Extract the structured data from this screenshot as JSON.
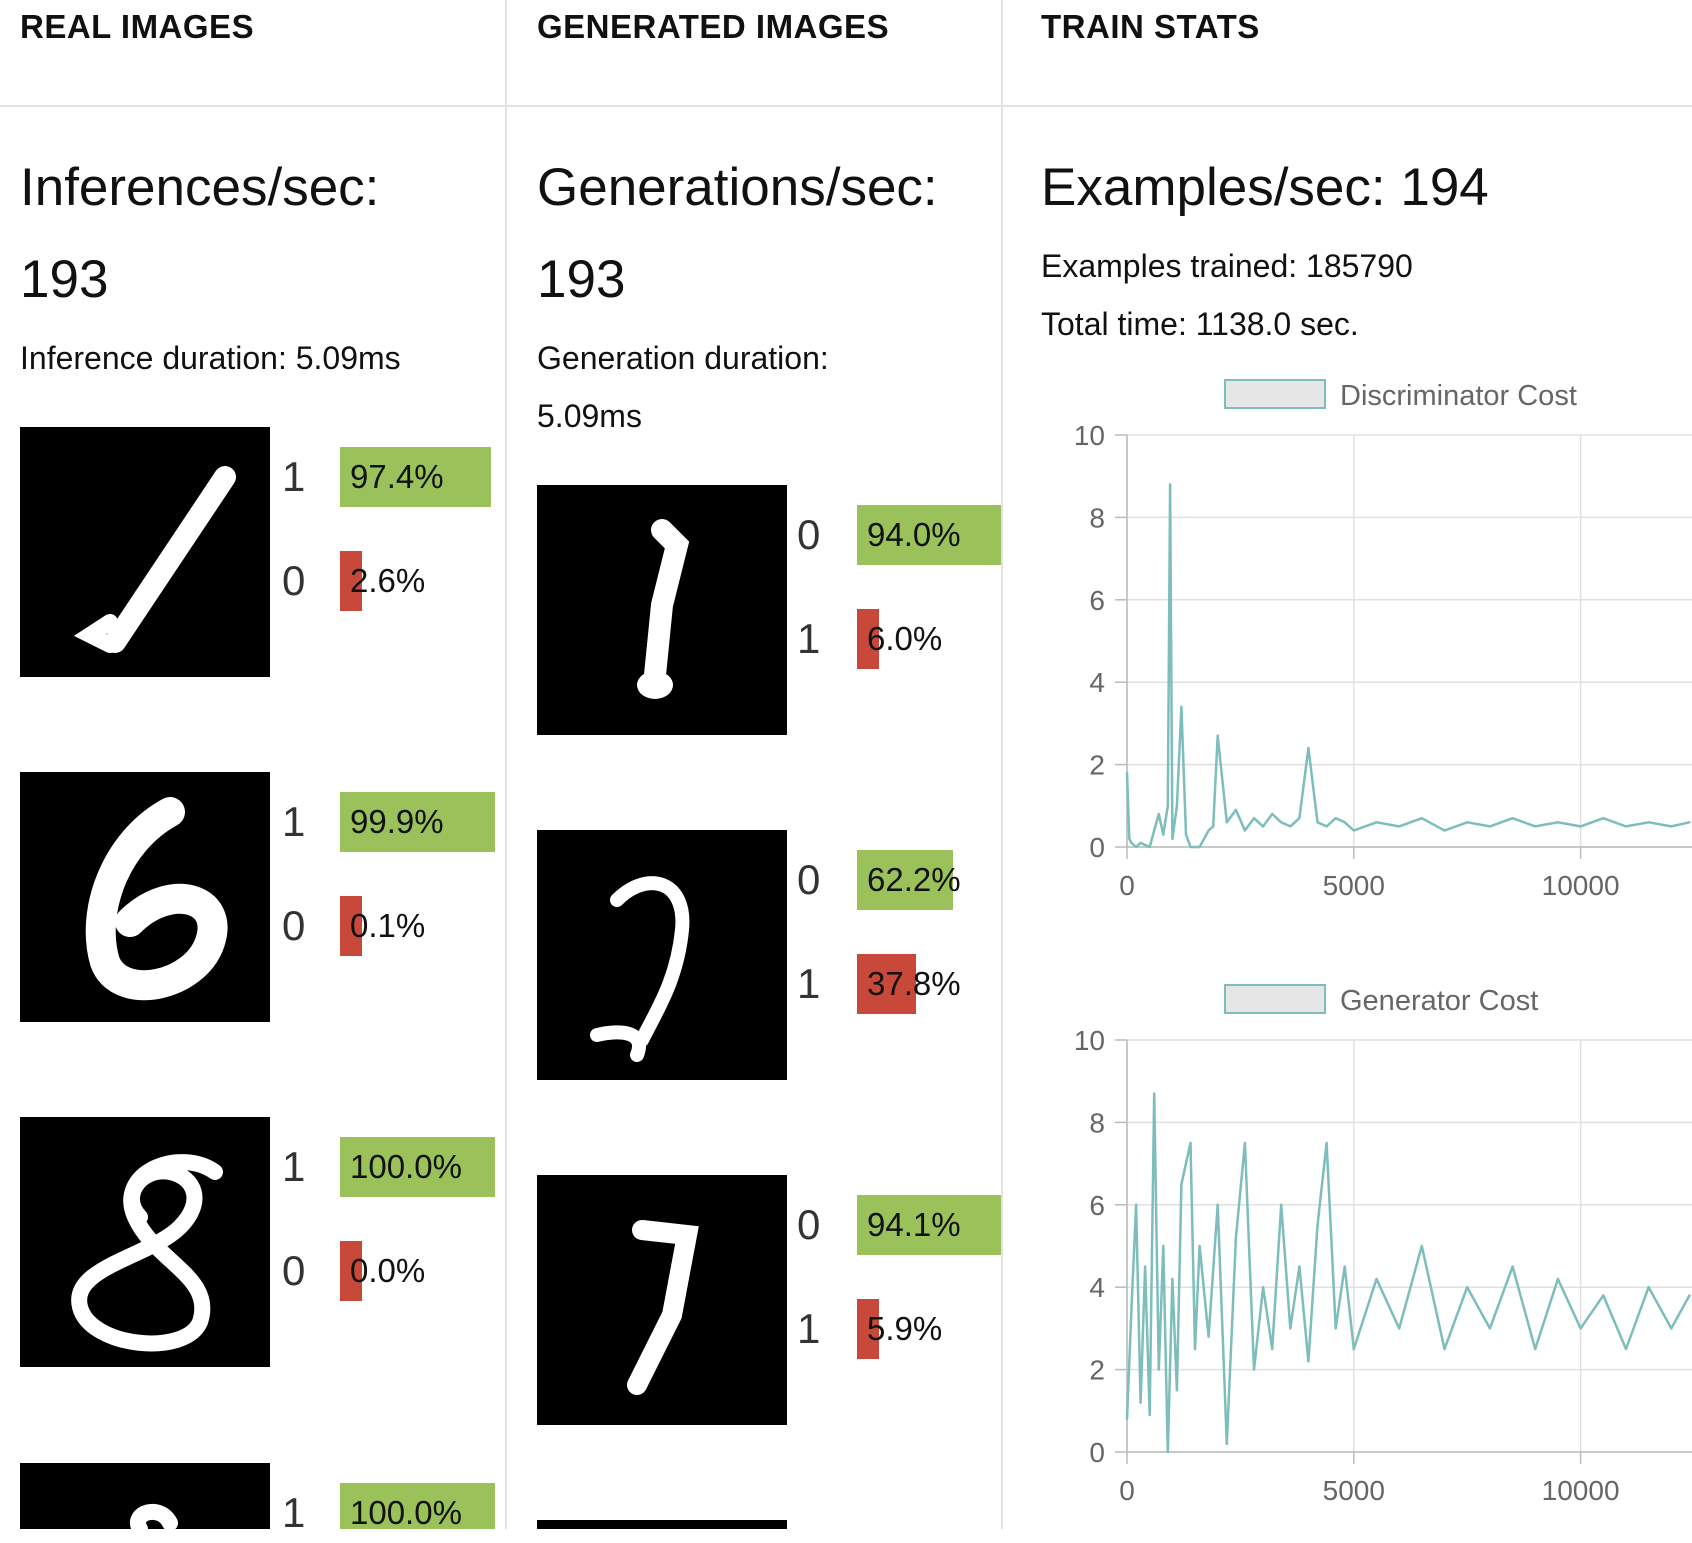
{
  "columns": {
    "real": {
      "header": "REAL IMAGES",
      "rate_label": "Inferences/sec:",
      "rate_value": "193",
      "duration_label": "Inference duration: 5.09ms",
      "samples": [
        {
          "digit_icon": "digit-1-image",
          "preds": [
            {
              "label": "1",
              "pct": 97.4,
              "text": "97.4%",
              "color": "#9bc25a"
            },
            {
              "label": "0",
              "pct": 2.6,
              "text": "2.6%",
              "color": "#c8483a"
            }
          ]
        },
        {
          "digit_icon": "digit-6-image",
          "preds": [
            {
              "label": "1",
              "pct": 99.9,
              "text": "99.9%",
              "color": "#9bc25a"
            },
            {
              "label": "0",
              "pct": 0.1,
              "text": "0.1%",
              "color": "#c8483a"
            }
          ]
        },
        {
          "digit_icon": "digit-8-image",
          "preds": [
            {
              "label": "1",
              "pct": 100.0,
              "text": "100.0%",
              "color": "#9bc25a"
            },
            {
              "label": "0",
              "pct": 0.0,
              "text": "0.0%",
              "color": "#c8483a"
            }
          ]
        },
        {
          "digit_icon": "digit-partial-image",
          "preds": [
            {
              "label": "1",
              "pct": 100.0,
              "text": "100.0%",
              "color": "#9bc25a"
            }
          ]
        }
      ]
    },
    "generated": {
      "header": "GENERATED IMAGES",
      "rate_label": "Generations/sec:",
      "rate_value": "193",
      "duration_label": "Generation duration:",
      "duration_value": "5.09ms",
      "samples": [
        {
          "digit_icon": "generated-digit-1-image",
          "preds": [
            {
              "label": "0",
              "pct": 94.0,
              "text": "94.0%",
              "color": "#9bc25a"
            },
            {
              "label": "1",
              "pct": 6.0,
              "text": "6.0%",
              "color": "#c8483a"
            }
          ]
        },
        {
          "digit_icon": "generated-digit-3-image",
          "preds": [
            {
              "label": "0",
              "pct": 62.2,
              "text": "62.2%",
              "color": "#9bc25a"
            },
            {
              "label": "1",
              "pct": 37.8,
              "text": "37.8%",
              "color": "#c8483a"
            }
          ]
        },
        {
          "digit_icon": "generated-digit-7-image",
          "preds": [
            {
              "label": "0",
              "pct": 94.1,
              "text": "94.1%",
              "color": "#9bc25a"
            },
            {
              "label": "1",
              "pct": 5.9,
              "text": "5.9%",
              "color": "#c8483a"
            }
          ]
        }
      ]
    },
    "train": {
      "header": "TRAIN STATS",
      "examples_per_sec": "Examples/sec: 194",
      "examples_trained": "Examples trained: 185790",
      "total_time": "Total time: 1138.0 sec."
    }
  },
  "chart_data": [
    {
      "type": "line",
      "title": "",
      "series": [
        {
          "name": "Discriminator Cost",
          "color": "#7dbdbb"
        }
      ],
      "xlim": [
        0,
        12500
      ],
      "ylim": [
        0,
        10
      ],
      "xticks": [
        "0",
        "5000",
        "10000"
      ],
      "yticks": [
        "0",
        "2",
        "4",
        "6",
        "8",
        "10"
      ],
      "grid": true,
      "legend": "top-center",
      "x": [
        0,
        50,
        100,
        200,
        300,
        500,
        600,
        700,
        800,
        900,
        950,
        1000,
        1100,
        1200,
        1300,
        1400,
        1600,
        1800,
        1900,
        2000,
        2200,
        2400,
        2600,
        2800,
        3000,
        3200,
        3400,
        3600,
        3800,
        4000,
        4200,
        4400,
        4600,
        4800,
        5000,
        5500,
        6000,
        6500,
        7000,
        7500,
        8000,
        8500,
        9000,
        9500,
        10000,
        10500,
        11000,
        11500,
        12000,
        12400
      ],
      "y": [
        1.8,
        0.2,
        0.1,
        0.0,
        0.1,
        0.0,
        0.4,
        0.8,
        0.3,
        1.0,
        8.8,
        0.2,
        1.0,
        3.4,
        0.3,
        0.0,
        0.0,
        0.4,
        0.5,
        2.7,
        0.6,
        0.9,
        0.4,
        0.7,
        0.5,
        0.8,
        0.6,
        0.5,
        0.7,
        2.4,
        0.6,
        0.5,
        0.7,
        0.6,
        0.4,
        0.6,
        0.5,
        0.7,
        0.4,
        0.6,
        0.5,
        0.7,
        0.5,
        0.6,
        0.5,
        0.7,
        0.5,
        0.6,
        0.5,
        0.6
      ]
    },
    {
      "type": "line",
      "title": "",
      "series": [
        {
          "name": "Generator Cost",
          "color": "#7dbdbb"
        }
      ],
      "xlim": [
        0,
        12500
      ],
      "ylim": [
        0,
        10
      ],
      "xticks": [
        "0",
        "5000",
        "10000"
      ],
      "yticks": [
        "0",
        "2",
        "4",
        "6",
        "8",
        "10"
      ],
      "grid": true,
      "legend": "top-center",
      "x": [
        0,
        100,
        200,
        300,
        400,
        500,
        600,
        700,
        800,
        900,
        1000,
        1100,
        1200,
        1400,
        1500,
        1600,
        1800,
        2000,
        2200,
        2400,
        2600,
        2800,
        3000,
        3200,
        3400,
        3600,
        3800,
        4000,
        4200,
        4400,
        4600,
        4800,
        5000,
        5500,
        6000,
        6500,
        7000,
        7500,
        8000,
        8500,
        9000,
        9500,
        10000,
        10500,
        11000,
        11500,
        12000,
        12400
      ],
      "y": [
        0.8,
        3.5,
        6.0,
        1.2,
        4.5,
        0.9,
        8.7,
        2.0,
        5.0,
        0.0,
        4.2,
        1.5,
        6.5,
        7.5,
        2.5,
        5.0,
        2.8,
        6.0,
        0.2,
        5.2,
        7.5,
        2.0,
        4.0,
        2.5,
        6.0,
        3.0,
        4.5,
        2.2,
        5.5,
        7.5,
        3.0,
        4.5,
        2.5,
        4.2,
        3.0,
        5.0,
        2.5,
        4.0,
        3.0,
        4.5,
        2.5,
        4.2,
        3.0,
        3.8,
        2.5,
        4.0,
        3.0,
        3.8
      ]
    }
  ]
}
